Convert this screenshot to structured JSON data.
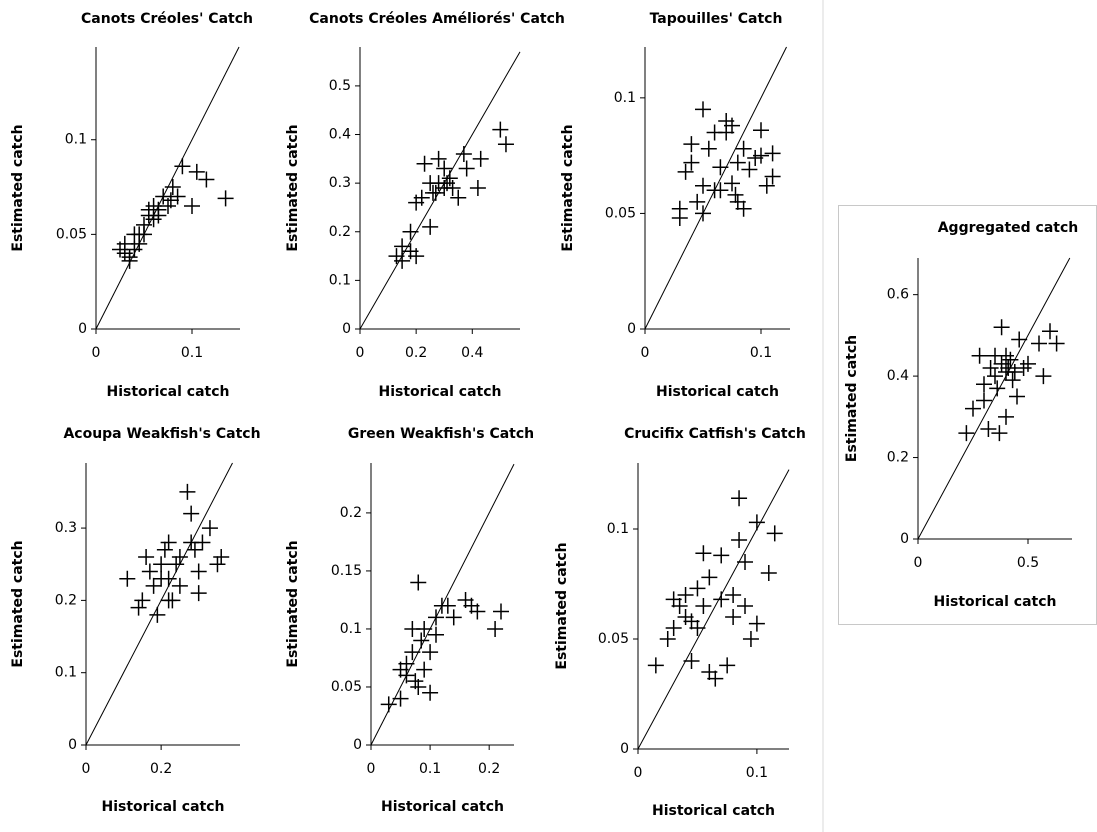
{
  "chart_data": [
    {
      "type": "scatter",
      "title": "Canots Créoles' Catch",
      "x_label": "Historical catch",
      "y_label": "Estimated catch",
      "xlim": [
        0,
        0.15
      ],
      "ylim": [
        0,
        0.149
      ],
      "xticks": [
        0,
        0.1
      ],
      "yticks": [
        0,
        0.05,
        0.1
      ],
      "x": [
        0.03,
        0.03,
        0.035,
        0.04,
        0.04,
        0.045,
        0.05,
        0.05,
        0.055,
        0.06,
        0.06,
        0.065,
        0.065,
        0.07,
        0.075,
        0.08,
        0.085,
        0.09,
        0.1,
        0.105,
        0.115,
        0.135,
        0.025,
        0.035,
        0.045,
        0.055,
        0.078
      ],
      "y": [
        0.04,
        0.045,
        0.038,
        0.042,
        0.05,
        0.045,
        0.05,
        0.055,
        0.06,
        0.058,
        0.065,
        0.06,
        0.063,
        0.07,
        0.065,
        0.075,
        0.07,
        0.086,
        0.065,
        0.083,
        0.079,
        0.069,
        0.042,
        0.036,
        0.05,
        0.063,
        0.068
      ]
    },
    {
      "type": "scatter",
      "title": "Canots Créoles Améliorés' Catch",
      "x_label": "Historical catch",
      "y_label": "Estimated catch",
      "xlim": [
        0,
        0.57
      ],
      "ylim": [
        0,
        0.58
      ],
      "xticks": [
        0,
        0.2,
        0.4
      ],
      "yticks": [
        0,
        0.1,
        0.2,
        0.3,
        0.4,
        0.5
      ],
      "x": [
        0.13,
        0.15,
        0.15,
        0.18,
        0.2,
        0.18,
        0.2,
        0.22,
        0.23,
        0.25,
        0.26,
        0.28,
        0.28,
        0.3,
        0.3,
        0.31,
        0.33,
        0.35,
        0.37,
        0.38,
        0.42,
        0.43,
        0.5,
        0.52,
        0.25,
        0.27,
        0.32
      ],
      "y": [
        0.15,
        0.14,
        0.17,
        0.16,
        0.15,
        0.2,
        0.26,
        0.27,
        0.34,
        0.3,
        0.28,
        0.3,
        0.35,
        0.29,
        0.33,
        0.3,
        0.29,
        0.27,
        0.36,
        0.33,
        0.29,
        0.35,
        0.41,
        0.38,
        0.21,
        0.28,
        0.31
      ]
    },
    {
      "type": "scatter",
      "title": "Tapouilles' Catch",
      "x_label": "Historical catch",
      "y_label": "Estimated catch",
      "xlim": [
        0,
        0.125
      ],
      "ylim": [
        0,
        0.122
      ],
      "xticks": [
        0,
        0.1
      ],
      "yticks": [
        0,
        0.05,
        0.1
      ],
      "x": [
        0.03,
        0.03,
        0.035,
        0.04,
        0.045,
        0.05,
        0.05,
        0.05,
        0.055,
        0.06,
        0.06,
        0.065,
        0.07,
        0.07,
        0.075,
        0.075,
        0.08,
        0.08,
        0.085,
        0.085,
        0.09,
        0.095,
        0.1,
        0.1,
        0.105,
        0.11,
        0.11,
        0.04,
        0.065,
        0.078
      ],
      "y": [
        0.048,
        0.052,
        0.068,
        0.072,
        0.055,
        0.05,
        0.062,
        0.095,
        0.078,
        0.085,
        0.06,
        0.07,
        0.09,
        0.085,
        0.088,
        0.063,
        0.072,
        0.055,
        0.078,
        0.052,
        0.069,
        0.074,
        0.086,
        0.075,
        0.062,
        0.076,
        0.066,
        0.08,
        0.06,
        0.058
      ]
    },
    {
      "type": "scatter",
      "title": "Acoupa Weakfish's Catch",
      "x_label": "Historical catch",
      "y_label": "Estimated catch",
      "xlim": [
        0,
        0.41
      ],
      "ylim": [
        0,
        0.39
      ],
      "xticks": [
        0,
        0.2
      ],
      "yticks": [
        0,
        0.1,
        0.2,
        0.3
      ],
      "x": [
        0.11,
        0.14,
        0.15,
        0.16,
        0.17,
        0.18,
        0.19,
        0.2,
        0.21,
        0.22,
        0.22,
        0.23,
        0.24,
        0.25,
        0.27,
        0.28,
        0.28,
        0.29,
        0.3,
        0.3,
        0.31,
        0.33,
        0.35,
        0.36,
        0.22,
        0.25,
        0.2
      ],
      "y": [
        0.23,
        0.19,
        0.2,
        0.26,
        0.24,
        0.22,
        0.18,
        0.25,
        0.27,
        0.28,
        0.23,
        0.2,
        0.25,
        0.22,
        0.35,
        0.32,
        0.28,
        0.27,
        0.21,
        0.24,
        0.28,
        0.3,
        0.25,
        0.26,
        0.2,
        0.26,
        0.23
      ]
    },
    {
      "type": "scatter",
      "title": "Green Weakfish's Catch",
      "x_label": "Historical catch",
      "y_label": "Estimated catch",
      "xlim": [
        0,
        0.242
      ],
      "ylim": [
        0,
        0.243
      ],
      "xticks": [
        0,
        0.1,
        0.2
      ],
      "yticks": [
        0,
        0.05,
        0.1,
        0.15,
        0.2
      ],
      "x": [
        0.03,
        0.05,
        0.06,
        0.06,
        0.07,
        0.07,
        0.08,
        0.08,
        0.09,
        0.09,
        0.1,
        0.1,
        0.11,
        0.12,
        0.13,
        0.14,
        0.16,
        0.17,
        0.18,
        0.21,
        0.22,
        0.05,
        0.075,
        0.085,
        0.11
      ],
      "y": [
        0.035,
        0.04,
        0.07,
        0.06,
        0.1,
        0.08,
        0.05,
        0.14,
        0.1,
        0.065,
        0.08,
        0.045,
        0.11,
        0.12,
        0.12,
        0.11,
        0.125,
        0.12,
        0.115,
        0.1,
        0.115,
        0.065,
        0.055,
        0.09,
        0.095
      ]
    },
    {
      "type": "scatter",
      "title": "Crucifix Catfish's Catch",
      "x_label": "Historical catch",
      "y_label": "Estimated catch",
      "xlim": [
        0,
        0.127
      ],
      "ylim": [
        0,
        0.13
      ],
      "xticks": [
        0,
        0.1
      ],
      "yticks": [
        0,
        0.05,
        0.1
      ],
      "x": [
        0.015,
        0.025,
        0.03,
        0.03,
        0.035,
        0.04,
        0.04,
        0.045,
        0.05,
        0.05,
        0.055,
        0.055,
        0.06,
        0.06,
        0.065,
        0.07,
        0.07,
        0.075,
        0.08,
        0.08,
        0.085,
        0.085,
        0.09,
        0.09,
        0.095,
        0.1,
        0.1,
        0.115,
        0.11,
        0.045
      ],
      "y": [
        0.038,
        0.05,
        0.055,
        0.068,
        0.065,
        0.07,
        0.06,
        0.04,
        0.073,
        0.055,
        0.089,
        0.065,
        0.078,
        0.035,
        0.032,
        0.068,
        0.088,
        0.038,
        0.07,
        0.06,
        0.114,
        0.095,
        0.065,
        0.085,
        0.05,
        0.103,
        0.057,
        0.098,
        0.08,
        0.058
      ]
    },
    {
      "type": "scatter",
      "title": "Aggregated catch",
      "x_label": "Historical catch",
      "y_label": "Estimated catch",
      "xlim": [
        0,
        0.7
      ],
      "ylim": [
        0,
        0.69
      ],
      "xticks": [
        0,
        0.5
      ],
      "yticks": [
        0,
        0.2,
        0.4,
        0.6
      ],
      "x": [
        0.22,
        0.25,
        0.28,
        0.3,
        0.3,
        0.32,
        0.33,
        0.35,
        0.36,
        0.37,
        0.38,
        0.38,
        0.4,
        0.4,
        0.4,
        0.42,
        0.43,
        0.44,
        0.45,
        0.46,
        0.48,
        0.5,
        0.55,
        0.57,
        0.6,
        0.63,
        0.35,
        0.41
      ],
      "y": [
        0.26,
        0.32,
        0.45,
        0.38,
        0.34,
        0.27,
        0.42,
        0.4,
        0.37,
        0.26,
        0.43,
        0.52,
        0.45,
        0.3,
        0.41,
        0.44,
        0.39,
        0.41,
        0.35,
        0.49,
        0.42,
        0.43,
        0.48,
        0.4,
        0.51,
        0.48,
        0.45,
        0.42
      ]
    }
  ]
}
